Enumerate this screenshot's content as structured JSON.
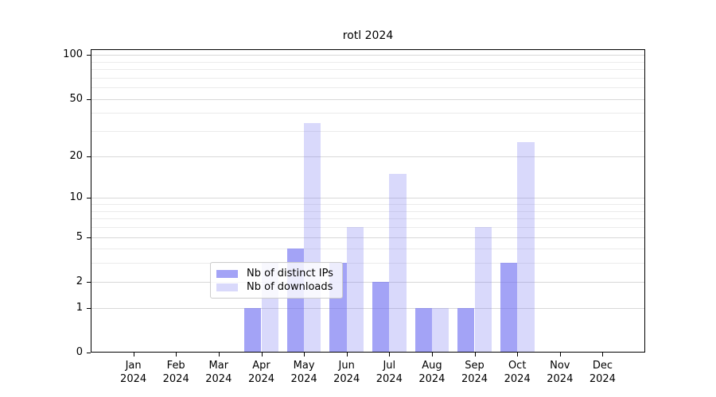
{
  "chart_data": {
    "type": "bar",
    "title": "rotl 2024",
    "categories": [
      "Jan",
      "Feb",
      "Mar",
      "Apr",
      "May",
      "Jun",
      "Jul",
      "Aug",
      "Sep",
      "Oct",
      "Nov",
      "Dec"
    ],
    "category_year": "2024",
    "series": [
      {
        "name": "Nb of distinct IPs",
        "fill": "rgba(110,110,240,0.63)",
        "values": [
          0,
          0,
          0,
          1,
          4,
          3,
          2,
          1,
          1,
          3,
          0,
          0
        ]
      },
      {
        "name": "Nb of downloads",
        "fill": "rgba(120,120,240,0.28)",
        "values": [
          0,
          0,
          0,
          3,
          34,
          6,
          15,
          1,
          6,
          25,
          0,
          0
        ]
      }
    ],
    "yscale": "log1p",
    "yticks": [
      0,
      1,
      2,
      5,
      10,
      20,
      50,
      100
    ],
    "minor_yticks": [
      3,
      4,
      6,
      7,
      8,
      9,
      30,
      40,
      60,
      70,
      80,
      90
    ],
    "ylim": [
      0,
      112
    ],
    "grid": true,
    "legend_position": "lower center",
    "colors": {
      "major_grid": "#d8d8d8",
      "minor_grid": "#ebebeb",
      "axis": "#000000",
      "legend_border": "#cccccc",
      "bar_dark_hex": "#a5a5f4",
      "bar_light_hex": "#dadafa"
    }
  }
}
